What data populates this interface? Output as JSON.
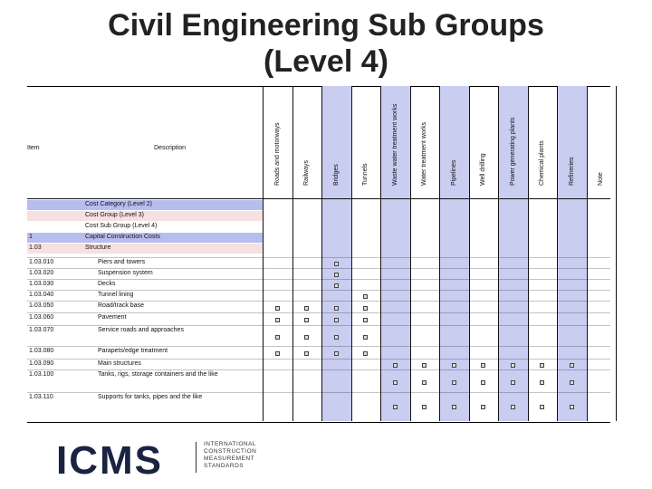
{
  "title": {
    "line1": "Civil Engineering Sub Groups",
    "line2": "(Level 4)"
  },
  "table": {
    "header_item": "Item",
    "header_description": "Description",
    "columns": [
      {
        "label": "Roads and motorways",
        "shaded": false
      },
      {
        "label": "Railways",
        "shaded": false
      },
      {
        "label": "Bridges",
        "shaded": true
      },
      {
        "label": "Tunnels",
        "shaded": false
      },
      {
        "label": "Waste water treatment works",
        "shaded": true
      },
      {
        "label": "Water treatment works",
        "shaded": false
      },
      {
        "label": "Pipelines",
        "shaded": true
      },
      {
        "label": "Well drilling",
        "shaded": false
      },
      {
        "label": "Power generating plants",
        "shaded": true
      },
      {
        "label": "Chemical plants",
        "shaded": false
      },
      {
        "label": "Refineries",
        "shaded": true
      },
      {
        "label": "Note",
        "shaded": false
      }
    ],
    "legend": [
      {
        "code": "",
        "label": "Cost Category (Level 2)",
        "color": "#b8bdf0"
      },
      {
        "code": "",
        "label": "Cost Group (Level 3)",
        "color": "#f6e0e0"
      },
      {
        "code": "",
        "label": "Cost Sub Group (Level 4)",
        "color": "#ffffff"
      },
      {
        "code": "1",
        "label": "Capital Construction Costs",
        "color": "#b8bdf0"
      },
      {
        "code": "1.03",
        "label": "Structure",
        "color": "#f6e0e0"
      }
    ],
    "rows": [
      {
        "code": "1.03.010",
        "label": "Piers and towers",
        "marks": [
          2
        ]
      },
      {
        "code": "1.03.020",
        "label": "Suspension system",
        "marks": [
          2
        ]
      },
      {
        "code": "1.03.030",
        "label": "Decks",
        "marks": [
          2
        ]
      },
      {
        "code": "1.03.040",
        "label": "Tunnel lining",
        "marks": [
          3
        ]
      },
      {
        "code": "1.03.050",
        "label": "Road/track base",
        "marks": [
          0,
          1,
          2,
          3
        ]
      },
      {
        "code": "1.03.060",
        "label": "Pavement",
        "marks": [
          0,
          1,
          2,
          3
        ]
      },
      {
        "code": "1.03.070",
        "label": "Service roads and approaches",
        "marks": [
          0,
          1,
          2,
          3
        ]
      },
      {
        "code": "1.03.080",
        "label": "Parapets/edge treatment",
        "marks": [
          0,
          1,
          2,
          3
        ]
      },
      {
        "code": "1.03.090",
        "label": "Main structures",
        "marks": [
          4,
          5,
          6,
          7,
          8,
          9,
          10
        ]
      },
      {
        "code": "1.03.100",
        "label": "Tanks, rigs, storage containers and the like",
        "marks": [
          4,
          5,
          6,
          7,
          8,
          9,
          10
        ]
      },
      {
        "code": "1.03.110",
        "label": "Supports for tanks, pipes and the like",
        "marks": [
          4,
          5,
          6,
          7,
          8,
          9,
          10
        ]
      }
    ]
  },
  "logo": {
    "word": "ICMS",
    "line1": "INTERNATIONAL",
    "line2": "CONSTRUCTION",
    "line3": "MEASUREMENT",
    "line4": "STANDARDS"
  }
}
